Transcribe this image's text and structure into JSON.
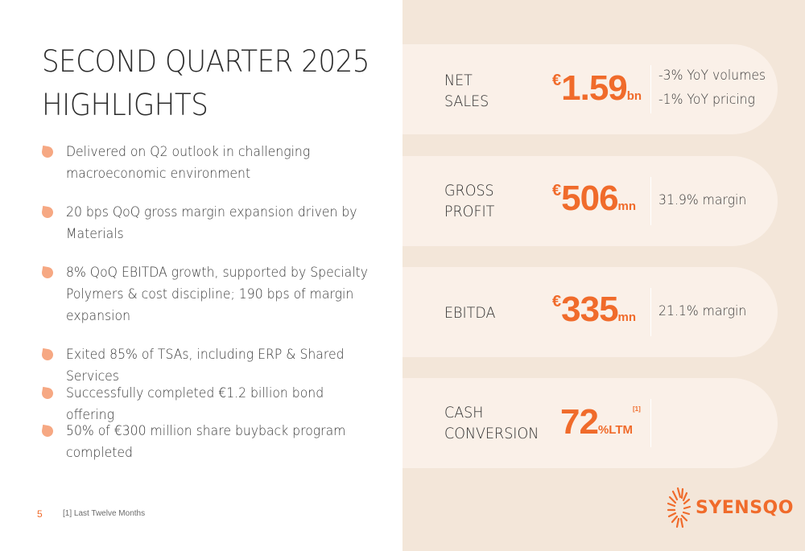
{
  "title": {
    "line1": "SECOND QUARTER 2025",
    "line2": "HIGHLIGHTS"
  },
  "bullets": [
    {
      "line1": "Delivered on Q2 outlook in challenging",
      "line2": "macroeconomic environment"
    },
    {
      "line1": "20 bps QoQ gross margin expansion driven by",
      "line2": "Materials"
    },
    {
      "line1": "8% QoQ EBITDA growth, supported by Specialty",
      "line2": "Polymers & cost discipline; 190 bps of margin",
      "line3": "expansion"
    },
    {
      "line1": "Exited 85% of TSAs, including ERP & Shared Services"
    },
    {
      "line1": "Successfully completed €1.2 billion bond offering"
    },
    {
      "line1": "50% of €300 million share buyback program",
      "line2": "completed"
    }
  ],
  "footer": {
    "page_number": "5",
    "note": "[1] Last Twelve Months"
  },
  "cards": [
    {
      "label1": "NET",
      "label2": "SALES",
      "currency": "€",
      "value": "1.59",
      "unit": "bn",
      "note1": "-3% YoY volumes",
      "note2": "-1% YoY pricing"
    },
    {
      "label1": "GROSS",
      "label2": "PROFIT",
      "currency": "€",
      "value": "506",
      "unit": "mn",
      "note1": "31.9% margin"
    },
    {
      "label1": "EBITDA",
      "currency": "€",
      "value": "335",
      "unit": "mn",
      "note1": "21.1% margin"
    },
    {
      "label1": "CASH",
      "label2": "CONVERSION",
      "value": "72",
      "unit": "%LTM",
      "sup": "[1]"
    }
  ],
  "logo": {
    "text": "SYENSQO"
  },
  "colors": {
    "accent": "#f06b2b",
    "leaf": "#f6a883",
    "panel": "#f3e6d9",
    "card": "#faf0e8"
  }
}
